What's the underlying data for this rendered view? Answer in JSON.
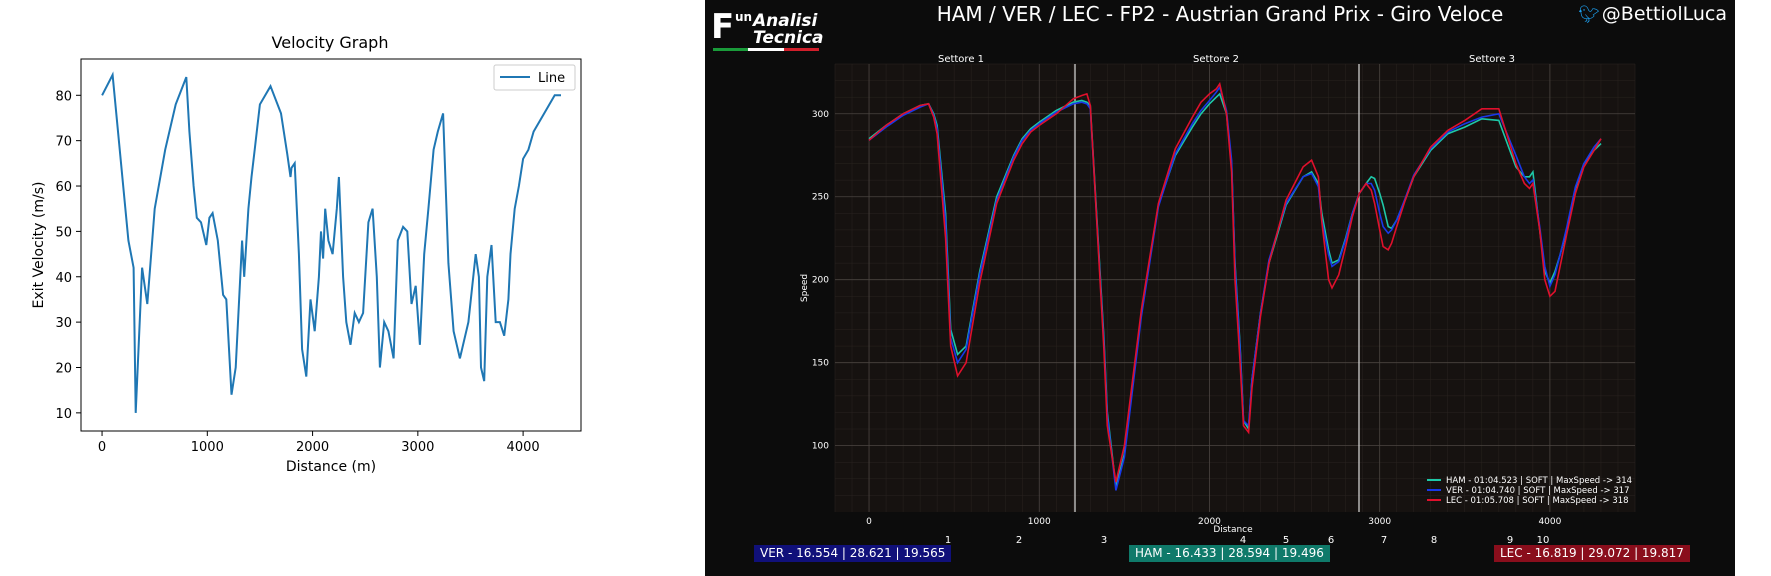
{
  "left_chart": {
    "title": "Velocity Graph",
    "xlabel": "Distance (m)",
    "ylabel": "Exit Velocity (m/s)",
    "legend_label": "Line",
    "line_color": "#1f77b4"
  },
  "right_panel": {
    "title": "HAM / VER / LEC - FP2 - Austrian Grand Prix - Giro Veloce",
    "twitter_handle": "@BettiolLuca",
    "logo": {
      "f": "F",
      "un": "un",
      "line1": "Analisi",
      "line2": "Tecnica"
    },
    "ylabel": "Speed",
    "xlabel": "Distance",
    "sectors": [
      "Settore 1",
      "Settore 2",
      "Settore 3"
    ],
    "corners": [
      "1",
      "2",
      "3",
      "4",
      "5",
      "6",
      "7",
      "8",
      "9",
      "10"
    ],
    "legend": [
      "HAM - 01:04.523 | SOFT |  MaxSpeed -> 314",
      "VER - 01:04.740 | SOFT |  MaxSpeed -> 317",
      "LEC - 01:05.708 | SOFT |  MaxSpeed -> 318"
    ],
    "badges": {
      "ver": "VER - 16.554 | 28.621 | 19.565",
      "ham": "HAM - 16.433 | 28.594 | 19.496",
      "lec": "LEC - 16.819 | 29.072 | 19.817"
    },
    "colors": {
      "ham": "#1ec8a8",
      "ver": "#1838e8",
      "lec": "#e0102c",
      "ham_badge": "#0f7a6a",
      "ver_badge": "#10107a",
      "lec_badge": "#8a0e1c"
    }
  },
  "chart_data": [
    {
      "type": "line",
      "title": "Velocity Graph",
      "xlabel": "Distance (m)",
      "ylabel": "Exit Velocity (m/s)",
      "xlim": [
        -200,
        4550
      ],
      "ylim": [
        6,
        88
      ],
      "xticks": [
        0,
        1000,
        2000,
        3000,
        4000
      ],
      "yticks": [
        10,
        20,
        30,
        40,
        50,
        60,
        70,
        80
      ],
      "legend": "top-right",
      "series": [
        {
          "name": "Line",
          "x": [
            0,
            100,
            250,
            300,
            320,
            380,
            430,
            500,
            600,
            700,
            800,
            830,
            870,
            900,
            940,
            960,
            990,
            1020,
            1050,
            1100,
            1150,
            1180,
            1230,
            1270,
            1300,
            1330,
            1350,
            1390,
            1420,
            1450,
            1500,
            1600,
            1700,
            1760,
            1790,
            1800,
            1830,
            1870,
            1900,
            1940,
            1980,
            2020,
            2060,
            2080,
            2100,
            2120,
            2150,
            2190,
            2230,
            2250,
            2290,
            2320,
            2360,
            2400,
            2440,
            2480,
            2530,
            2570,
            2610,
            2640,
            2680,
            2720,
            2770,
            2810,
            2860,
            2900,
            2940,
            2980,
            3020,
            3060,
            3100,
            3150,
            3190,
            3240,
            3290,
            3340,
            3400,
            3480,
            3550,
            3580,
            3600,
            3630,
            3660,
            3700,
            3740,
            3780,
            3820,
            3860,
            3880,
            3920,
            3960,
            4000,
            4050,
            4100,
            4200,
            4300,
            4360
          ],
          "values": [
            80,
            84.5,
            48,
            42,
            10,
            42,
            34,
            55,
            68,
            78,
            84,
            72,
            60,
            53,
            52,
            50,
            47,
            53,
            54,
            48,
            36,
            35,
            14,
            20,
            34,
            48,
            40,
            55,
            62,
            68,
            78,
            82,
            76,
            67,
            62,
            64,
            65,
            45,
            24,
            18,
            35,
            28,
            40,
            50,
            44,
            55,
            48,
            45,
            55,
            62,
            40,
            30,
            25,
            32,
            30,
            32,
            52,
            55,
            40,
            20,
            30,
            28,
            22,
            48,
            51,
            50,
            34,
            38,
            25,
            45,
            55,
            68,
            72,
            76,
            43,
            28,
            22,
            30,
            45,
            40,
            20,
            17,
            40,
            47,
            30,
            30,
            27,
            35,
            45,
            55,
            60,
            66,
            68,
            72,
            76,
            80,
            80
          ]
        }
      ]
    },
    {
      "type": "line",
      "title": "HAM / VER / LEC - FP2 - Austrian Grand Prix - Giro Veloce",
      "xlabel": "Distance",
      "ylabel": "Speed",
      "xlim": [
        -200,
        4500
      ],
      "ylim": [
        60,
        330
      ],
      "xticks": [
        0,
        1000,
        2000,
        3000,
        4000
      ],
      "yticks": [
        100,
        150,
        200,
        250,
        300
      ],
      "legend": "bottom-right",
      "series": [
        {
          "name": "HAM",
          "x": [
            0,
            100,
            200,
            300,
            350,
            380,
            400,
            450,
            480,
            520,
            570,
            650,
            750,
            850,
            900,
            950,
            1000,
            1100,
            1200,
            1250,
            1280,
            1300,
            1380,
            1400,
            1450,
            1500,
            1600,
            1700,
            1800,
            1900,
            1950,
            2000,
            2040,
            2060,
            2100,
            2130,
            2150,
            2180,
            2200,
            2230,
            2250,
            2300,
            2350,
            2450,
            2550,
            2600,
            2640,
            2660,
            2700,
            2720,
            2760,
            2800,
            2840,
            2880,
            2920,
            2950,
            2970,
            3000,
            3020,
            3050,
            3070,
            3100,
            3150,
            3200,
            3300,
            3400,
            3500,
            3600,
            3700,
            3800,
            3850,
            3880,
            3900,
            3940,
            3970,
            4000,
            4030,
            4060,
            4100,
            4150,
            4200,
            4260,
            4300
          ],
          "values": [
            285,
            293,
            300,
            305,
            306,
            300,
            293,
            240,
            170,
            155,
            160,
            205,
            250,
            275,
            285,
            291,
            295,
            302,
            307,
            308,
            307,
            305,
            165,
            120,
            75,
            95,
            180,
            245,
            275,
            292,
            300,
            306,
            310,
            312,
            300,
            270,
            210,
            160,
            115,
            110,
            140,
            180,
            210,
            245,
            262,
            265,
            258,
            240,
            218,
            210,
            212,
            225,
            240,
            252,
            258,
            262,
            261,
            252,
            245,
            232,
            231,
            236,
            248,
            262,
            278,
            288,
            292,
            297,
            296,
            268,
            262,
            262,
            265,
            230,
            205,
            198,
            205,
            215,
            230,
            255,
            270,
            278,
            282
          ]
        },
        {
          "name": "VER",
          "x": [
            0,
            100,
            200,
            300,
            350,
            380,
            400,
            450,
            480,
            520,
            570,
            650,
            750,
            850,
            900,
            950,
            1000,
            1100,
            1200,
            1250,
            1280,
            1300,
            1380,
            1400,
            1450,
            1500,
            1600,
            1700,
            1800,
            1900,
            1950,
            2000,
            2040,
            2060,
            2100,
            2130,
            2150,
            2180,
            2200,
            2230,
            2250,
            2300,
            2350,
            2450,
            2550,
            2600,
            2640,
            2660,
            2700,
            2720,
            2760,
            2800,
            2840,
            2880,
            2920,
            2950,
            2970,
            3000,
            3020,
            3050,
            3070,
            3100,
            3150,
            3200,
            3300,
            3400,
            3500,
            3600,
            3700,
            3800,
            3850,
            3880,
            3900,
            3940,
            3970,
            4000,
            4030,
            4060,
            4100,
            4150,
            4200,
            4260,
            4300
          ],
          "values": [
            284,
            292,
            299,
            304,
            306,
            299,
            291,
            235,
            165,
            150,
            158,
            203,
            248,
            274,
            284,
            290,
            294,
            301,
            306,
            307,
            306,
            303,
            162,
            118,
            73,
            93,
            178,
            244,
            276,
            294,
            302,
            308,
            313,
            316,
            302,
            272,
            208,
            158,
            115,
            112,
            140,
            180,
            212,
            246,
            262,
            264,
            256,
            236,
            215,
            208,
            211,
            224,
            240,
            252,
            258,
            258,
            254,
            240,
            232,
            228,
            230,
            236,
            249,
            263,
            279,
            289,
            294,
            298,
            300,
            275,
            262,
            258,
            260,
            232,
            208,
            196,
            203,
            215,
            232,
            256,
            270,
            280,
            285
          ]
        },
        {
          "name": "LEC",
          "x": [
            0,
            100,
            200,
            300,
            350,
            380,
            400,
            450,
            480,
            520,
            570,
            650,
            750,
            850,
            900,
            950,
            1000,
            1100,
            1200,
            1250,
            1280,
            1300,
            1380,
            1400,
            1450,
            1500,
            1600,
            1700,
            1800,
            1900,
            1950,
            2000,
            2040,
            2060,
            2100,
            2130,
            2150,
            2180,
            2200,
            2230,
            2250,
            2300,
            2350,
            2450,
            2550,
            2600,
            2640,
            2660,
            2700,
            2720,
            2760,
            2800,
            2840,
            2880,
            2920,
            2950,
            2970,
            3000,
            3020,
            3050,
            3070,
            3100,
            3150,
            3200,
            3300,
            3400,
            3500,
            3600,
            3700,
            3800,
            3850,
            3880,
            3900,
            3940,
            3970,
            4000,
            4030,
            4060,
            4100,
            4150,
            4200,
            4260,
            4300
          ],
          "values": [
            284,
            293,
            300,
            305,
            306,
            298,
            288,
            225,
            160,
            142,
            150,
            198,
            246,
            272,
            282,
            289,
            293,
            300,
            309,
            311,
            312,
            305,
            158,
            112,
            78,
            100,
            182,
            246,
            279,
            298,
            307,
            312,
            315,
            318,
            300,
            265,
            200,
            150,
            112,
            108,
            135,
            178,
            210,
            248,
            268,
            272,
            262,
            235,
            200,
            195,
            203,
            220,
            238,
            252,
            258,
            254,
            246,
            230,
            220,
            218,
            222,
            232,
            248,
            262,
            280,
            290,
            296,
            303,
            303,
            270,
            258,
            255,
            258,
            230,
            200,
            190,
            193,
            208,
            228,
            252,
            268,
            278,
            285
          ]
        }
      ]
    }
  ]
}
